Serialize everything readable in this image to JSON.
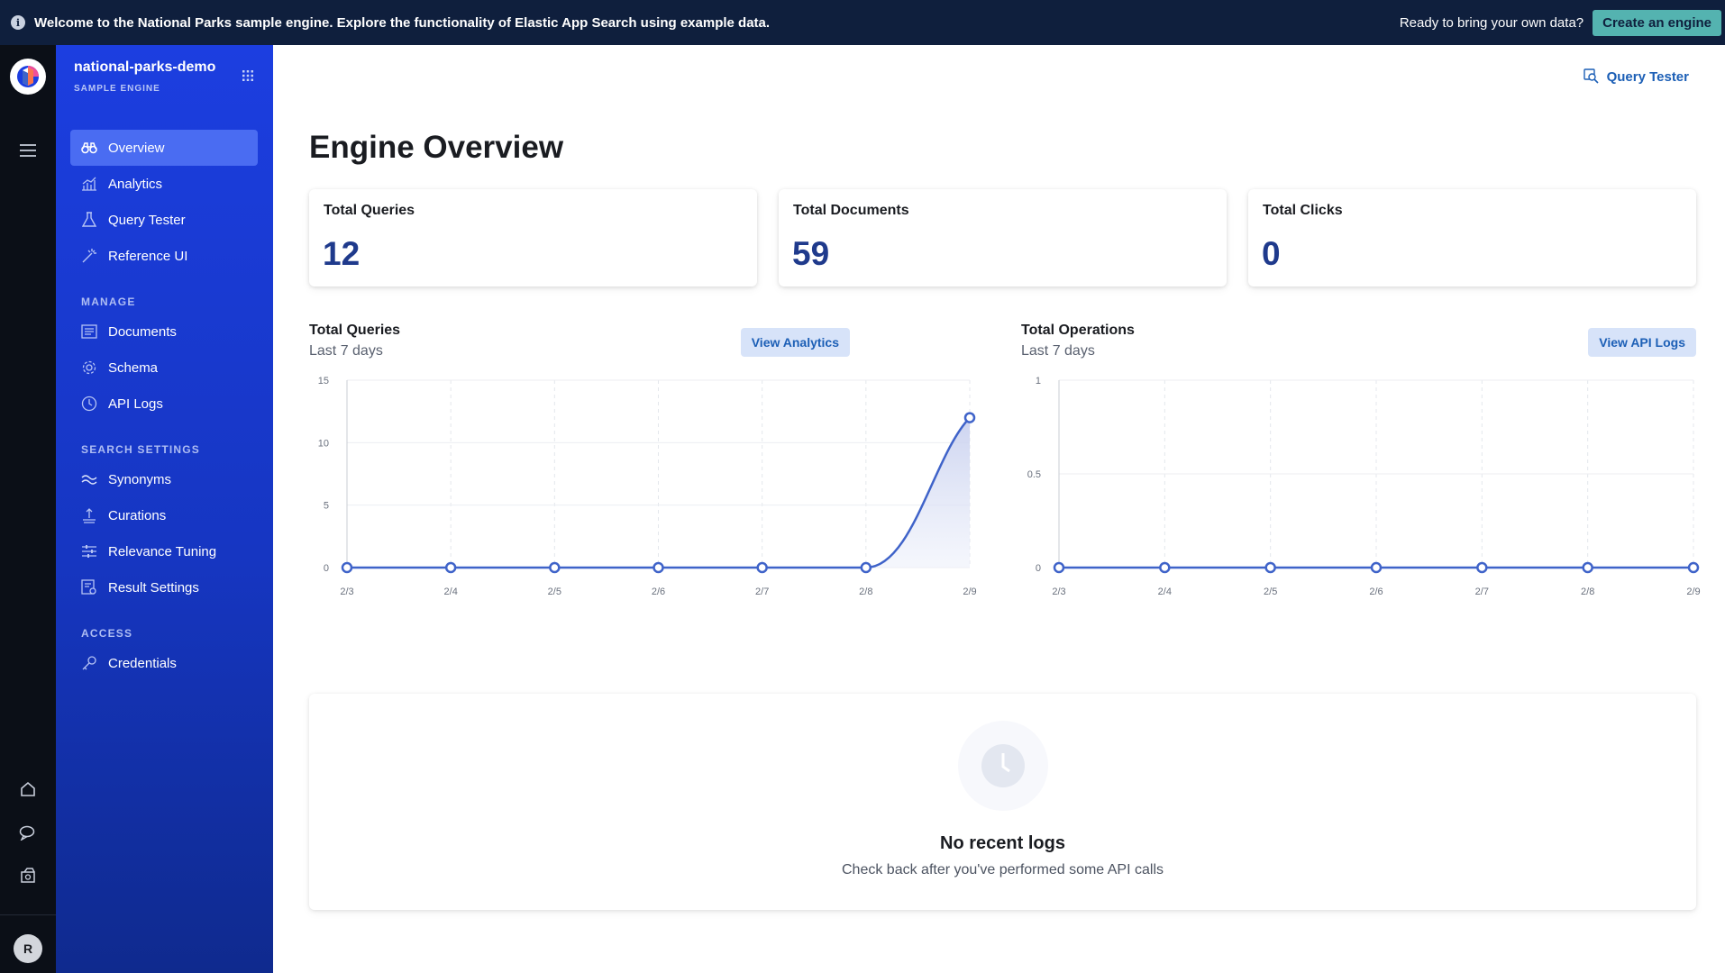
{
  "banner": {
    "welcome": "Welcome to the National Parks sample engine. Explore the functionality of Elastic App Search using example data.",
    "ready": "Ready to bring your own data?",
    "create_label": "Create an engine"
  },
  "rail": {
    "avatar_initial": "R",
    "icons": [
      "menu-icon",
      "home-icon",
      "chat-icon",
      "package-icon"
    ]
  },
  "sidebar": {
    "engine_name": "national-parks-demo",
    "engine_sub": "SAMPLE ENGINE",
    "items": [
      {
        "label": "Overview",
        "icon": "binoculars-icon"
      },
      {
        "label": "Analytics",
        "icon": "analytics-icon"
      },
      {
        "label": "Query Tester",
        "icon": "flask-icon"
      },
      {
        "label": "Reference UI",
        "icon": "wand-icon"
      }
    ],
    "manage_title": "MANAGE",
    "manage": [
      {
        "label": "Documents",
        "icon": "documents-icon"
      },
      {
        "label": "Schema",
        "icon": "gear-icon"
      },
      {
        "label": "API Logs",
        "icon": "clock-icon"
      }
    ],
    "search_title": "SEARCH SETTINGS",
    "search": [
      {
        "label": "Synonyms",
        "icon": "synonyms-icon"
      },
      {
        "label": "Curations",
        "icon": "curations-icon"
      },
      {
        "label": "Relevance Tuning",
        "icon": "sliders-icon"
      },
      {
        "label": "Result Settings",
        "icon": "result-settings-icon"
      }
    ],
    "access_title": "ACCESS",
    "access": [
      {
        "label": "Credentials",
        "icon": "key-icon"
      }
    ]
  },
  "main": {
    "query_tester_link": "Query Tester",
    "title": "Engine Overview",
    "stats": [
      {
        "title": "Total Queries",
        "value": "12"
      },
      {
        "title": "Total Documents",
        "value": "59"
      },
      {
        "title": "Total Clicks",
        "value": "0"
      }
    ],
    "logs": {
      "title": "No recent logs",
      "subtitle": "Check back after you've performed some API calls"
    }
  },
  "colors": {
    "accent": "#1c5fb6",
    "line": "#3f63c9",
    "sidebar": "#1c3ee0"
  },
  "chart_data": [
    {
      "type": "line",
      "title": "Total Queries",
      "subtitle": "Last 7 days",
      "button": "View Analytics",
      "x": [
        "2/3",
        "2/4",
        "2/5",
        "2/6",
        "2/7",
        "2/8",
        "2/9"
      ],
      "values": [
        0,
        0,
        0,
        0,
        0,
        0,
        12
      ],
      "ylim": [
        0,
        15
      ],
      "yticks": [
        "0",
        "5",
        "10",
        "15"
      ],
      "ytick_values": [
        0,
        5,
        10,
        15
      ],
      "grid": true
    },
    {
      "type": "line",
      "title": "Total Operations",
      "subtitle": "Last 7 days",
      "button": "View API Logs",
      "x": [
        "2/3",
        "2/4",
        "2/5",
        "2/6",
        "2/7",
        "2/8",
        "2/9"
      ],
      "values": [
        0,
        0,
        0,
        0,
        0,
        0,
        0
      ],
      "ylim": [
        0,
        1
      ],
      "yticks": [
        "0",
        "0.5",
        "1"
      ],
      "ytick_values": [
        0,
        0.5,
        1
      ],
      "grid": true
    }
  ]
}
